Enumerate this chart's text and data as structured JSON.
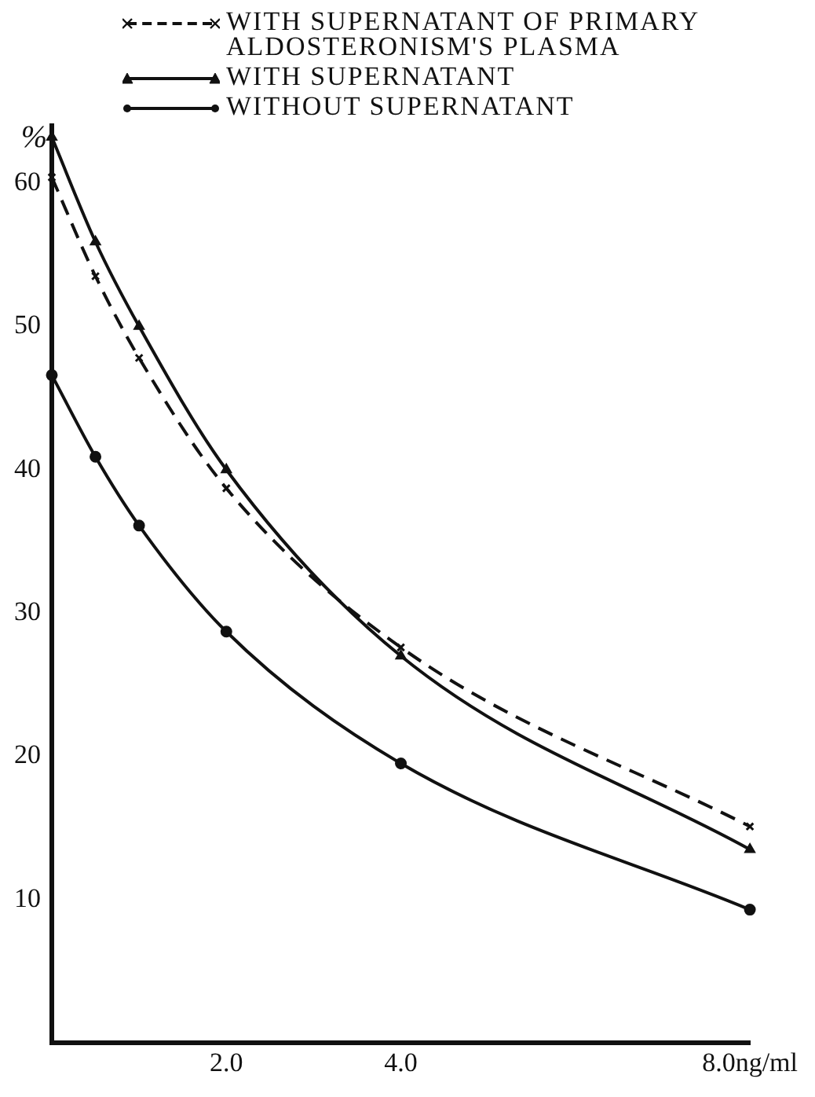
{
  "chart_data": {
    "type": "line",
    "ylabel": "%",
    "x": [
      0,
      0.5,
      1,
      2,
      4,
      8
    ],
    "xlim": [
      0,
      8
    ],
    "ylim": [
      0,
      64
    ],
    "xticks": [
      {
        "value": 2,
        "label": "2.0"
      },
      {
        "value": 4,
        "label": "4.0"
      },
      {
        "value": 8,
        "label": "8.0ng/ml"
      }
    ],
    "yticks": [
      10,
      20,
      30,
      40,
      50,
      60
    ],
    "grid": false,
    "legend": "top right",
    "series": [
      {
        "name": "WITH SUPERNATANT OF PRIMARY ALDOSTERONISM'S PLASMA",
        "color": "#111111",
        "marker": "cross",
        "line_style": "dashed",
        "values": [
          60.4,
          53.5,
          47.8,
          38.7,
          27.6,
          15.1
        ]
      },
      {
        "name": "WITH SUPERNATANT",
        "color": "#111111",
        "marker": "triangle",
        "line_style": "solid",
        "values": [
          63.2,
          55.9,
          50.0,
          40.0,
          27.0,
          13.5
        ]
      },
      {
        "name": "WITHOUT SUPERNATANT",
        "color": "#111111",
        "marker": "circle",
        "line_style": "solid",
        "values": [
          46.6,
          40.9,
          36.1,
          28.7,
          19.5,
          9.3
        ]
      }
    ]
  }
}
